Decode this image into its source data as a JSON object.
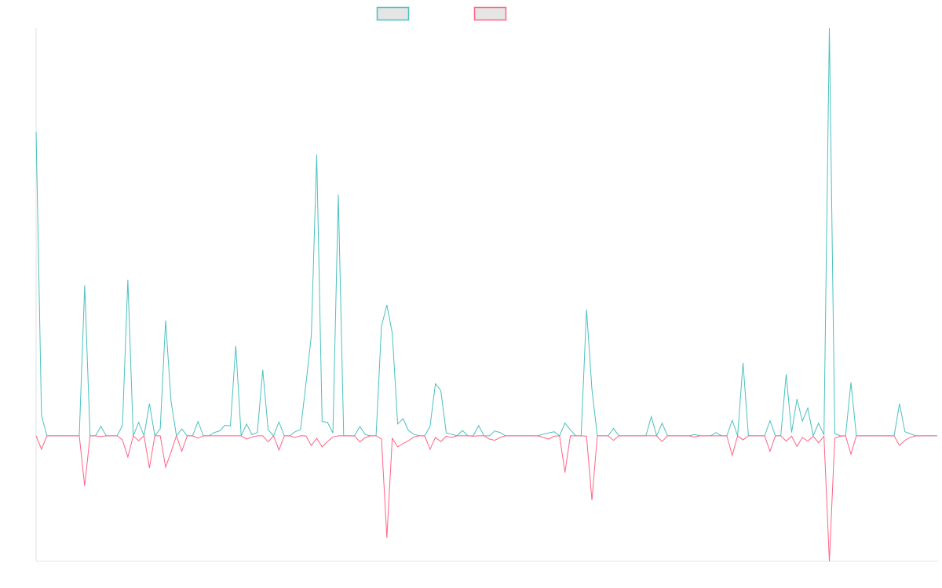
{
  "chart_data": {
    "type": "line",
    "title": "",
    "xlabel": "",
    "ylabel": "",
    "ylim": [
      -30.8,
      100
    ],
    "grid": false,
    "legend_placement": "top-center",
    "point_count": 168,
    "series": [
      {
        "color": "#4bc0c0",
        "legend_fill": "#e5e5e5",
        "values": [
          74.6,
          5,
          0,
          0,
          0,
          0,
          0,
          0,
          0,
          36.9,
          0,
          0,
          2.3,
          0,
          0,
          0,
          2.5,
          38.3,
          0,
          3.3,
          0,
          7.9,
          0,
          1.7,
          28.3,
          8.5,
          0,
          1.7,
          0,
          0,
          3.5,
          0,
          0,
          0.8,
          1.2,
          2.6,
          2.4,
          22.1,
          0,
          2.9,
          0.3,
          0.8,
          16.2,
          1.5,
          0,
          3.4,
          0,
          0,
          1.0,
          1.5,
          12.7,
          24.6,
          69,
          3.5,
          3.3,
          0.7,
          59.2,
          0,
          0,
          0,
          2.3,
          0.3,
          0,
          0,
          26.9,
          32.1,
          25.2,
          2.9,
          4.2,
          1.3,
          0.4,
          0,
          0,
          2.3,
          12.8,
          11.1,
          0.7,
          0.4,
          0,
          1.3,
          0,
          0,
          2.5,
          0,
          0,
          1.2,
          0.8,
          0,
          0,
          0,
          0,
          0,
          0,
          0,
          0.4,
          0.7,
          1.0,
          0,
          3.1,
          1.5,
          0,
          0,
          31,
          11.4,
          0,
          0,
          0,
          1.8,
          0,
          0,
          0,
          0,
          0,
          0,
          4.7,
          0,
          3.1,
          0,
          0,
          0,
          0,
          0,
          0.3,
          0,
          0,
          0,
          0.8,
          0,
          0,
          3.8,
          0,
          17.9,
          0,
          0,
          0,
          0,
          3.7,
          0,
          0,
          15.1,
          0.8,
          9.0,
          3.6,
          6.8,
          0,
          3.1,
          0.2,
          100,
          0.6,
          0,
          0,
          13.1,
          0,
          0,
          0,
          0,
          0,
          0,
          0,
          0,
          7.9,
          1.0,
          0.5,
          0,
          0,
          0,
          0,
          0
        ]
      },
      {
        "color": "#ff6384",
        "legend_fill": "#e5e5e5",
        "values": [
          0,
          -3.3,
          0,
          0,
          0,
          0,
          0,
          0,
          0,
          -12.3,
          0,
          0,
          -0.2,
          0,
          0,
          0,
          -1,
          -5.2,
          0,
          -1.2,
          0,
          -7.9,
          0,
          0,
          -7.7,
          -4,
          0,
          -3.8,
          0,
          0,
          -0.6,
          0,
          0,
          0,
          0,
          0,
          0,
          0,
          0,
          -0.8,
          -0.3,
          0,
          0,
          -1.5,
          0,
          -3.5,
          0,
          0,
          -0.4,
          0,
          0,
          -2.4,
          -0.6,
          -2.7,
          -1.4,
          -0.3,
          0,
          0,
          0,
          0,
          -1.5,
          -0.4,
          0,
          0,
          -0.8,
          -25,
          -0.6,
          -2.7,
          -1.9,
          -1.2,
          -0.3,
          0,
          0,
          -3.3,
          -0.4,
          -1.4,
          -0.1,
          -0.4,
          0,
          0,
          0,
          -0.1,
          0,
          0,
          -0.8,
          -1.1,
          -0.4,
          0,
          0,
          0,
          0,
          0,
          0,
          0,
          -0.4,
          -0.8,
          -0.1,
          0,
          -9,
          0,
          0,
          0,
          -0.1,
          -15.8,
          0,
          0,
          0,
          -1.1,
          0,
          0,
          0,
          0,
          0,
          0,
          0,
          0,
          -1.4,
          0,
          0,
          0,
          0,
          0,
          -0.3,
          0,
          0,
          0,
          0,
          0,
          0,
          -4.8,
          0,
          -1,
          0,
          0,
          0,
          0,
          -3.8,
          0,
          0,
          -1.3,
          -0.1,
          -2.6,
          -0.4,
          -1.3,
          -0.1,
          -1.7,
          -0.1,
          -30.8,
          -0.6,
          -0.1,
          0,
          -4.5,
          0,
          0,
          0,
          0,
          0,
          0,
          0,
          0,
          -2.4,
          -1.1,
          -0.4,
          0,
          0,
          0,
          0,
          0
        ]
      }
    ]
  }
}
